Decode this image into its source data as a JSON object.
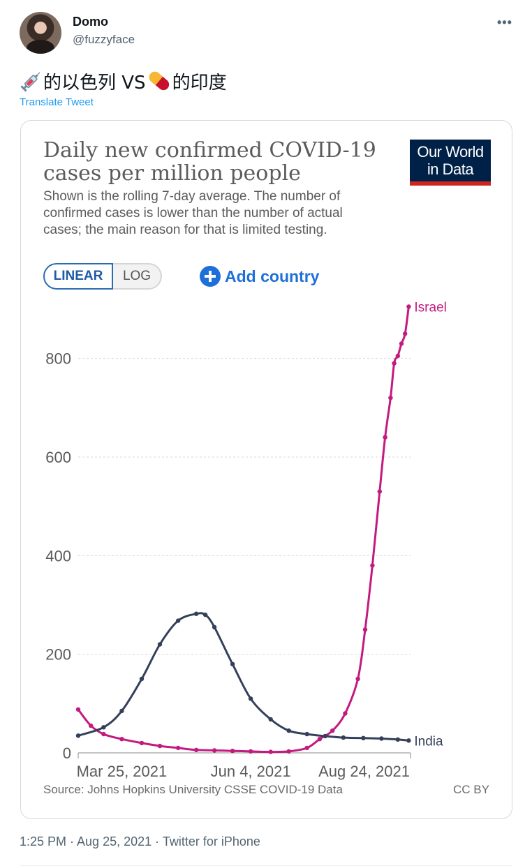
{
  "user": {
    "name": "Domo",
    "handle": "@fuzzyface"
  },
  "tweet": {
    "text_part1": "的以色列 VS ",
    "text_part2": "的印度",
    "emoji1_icon": "syringe-icon",
    "emoji2_icon": "pill-icon",
    "translate_label": "Translate Tweet",
    "more_icon": "more-icon"
  },
  "card": {
    "logo_line1": "Our World",
    "logo_line2": "in Data",
    "toggle_linear": "LINEAR",
    "toggle_log": "LOG",
    "add_country": "Add country",
    "source": "Source: Johns Hopkins University CSSE COVID-19 Data",
    "license": "CC BY"
  },
  "chart_data": {
    "type": "line",
    "title": "Daily new confirmed COVID-19 cases per million people",
    "subtitle": "Shown is the rolling 7-day average. The number of confirmed cases is lower than the number of actual cases; the main reason for that is limited testing.",
    "xlabel": "",
    "ylabel": "",
    "ylim": [
      0,
      900
    ],
    "yticks": [
      0,
      200,
      400,
      600,
      800
    ],
    "xticks": [
      "Mar 25, 2021",
      "Jun 4, 2021",
      "Aug 24, 2021"
    ],
    "grid": true,
    "series": [
      {
        "name": "Israel",
        "color": "#c31a7f",
        "x": [
          "2021-03-01",
          "2021-03-08",
          "2021-03-15",
          "2021-03-25",
          "2021-04-05",
          "2021-04-15",
          "2021-04-25",
          "2021-05-05",
          "2021-05-15",
          "2021-05-25",
          "2021-06-04",
          "2021-06-15",
          "2021-06-25",
          "2021-07-05",
          "2021-07-12",
          "2021-07-19",
          "2021-07-26",
          "2021-08-02",
          "2021-08-06",
          "2021-08-10",
          "2021-08-14",
          "2021-08-17",
          "2021-08-20",
          "2021-08-22",
          "2021-08-24",
          "2021-08-26",
          "2021-08-28",
          "2021-08-30"
        ],
        "values": [
          88,
          55,
          38,
          28,
          20,
          14,
          10,
          6,
          5,
          4,
          3,
          2,
          3,
          10,
          28,
          45,
          80,
          150,
          250,
          380,
          530,
          640,
          720,
          790,
          805,
          830,
          850,
          905
        ]
      },
      {
        "name": "India",
        "color": "#34405a",
        "x": [
          "2021-03-01",
          "2021-03-15",
          "2021-03-25",
          "2021-04-05",
          "2021-04-15",
          "2021-04-25",
          "2021-05-05",
          "2021-05-10",
          "2021-05-15",
          "2021-05-25",
          "2021-06-04",
          "2021-06-15",
          "2021-06-25",
          "2021-07-05",
          "2021-07-15",
          "2021-07-25",
          "2021-08-05",
          "2021-08-15",
          "2021-08-24",
          "2021-08-30"
        ],
        "values": [
          35,
          52,
          85,
          150,
          220,
          268,
          282,
          280,
          255,
          180,
          110,
          68,
          45,
          38,
          34,
          31,
          30,
          29,
          27,
          25
        ]
      }
    ]
  }
}
